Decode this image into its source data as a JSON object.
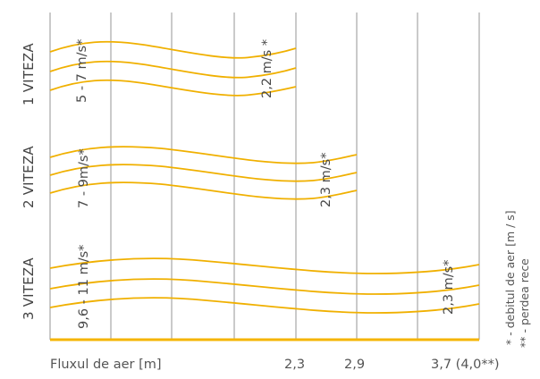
{
  "colors": {
    "grid": "#bdbdbd",
    "curves": "#f0b000",
    "baseline": "#f5b400"
  },
  "speeds": [
    {
      "label": "1 VITEZA",
      "range": "5 - 7 m/s*",
      "end_value": "2,2 m/s *"
    },
    {
      "label": "2 VITEZA",
      "range": "7 - 9m/s*",
      "end_value": "2,3 m/s*"
    },
    {
      "label": "3 VITEZA",
      "range": "9,6 - 11 m/s*",
      "end_value": "2,3 m/s*"
    }
  ],
  "axis": {
    "label": "Fluxul de aer [m]",
    "ticks": [
      "2,3",
      "2,9",
      "3,7 (4,0**)"
    ]
  },
  "notes": [
    "* - debitul de aer [m / s]",
    "** - perdea rece"
  ]
}
